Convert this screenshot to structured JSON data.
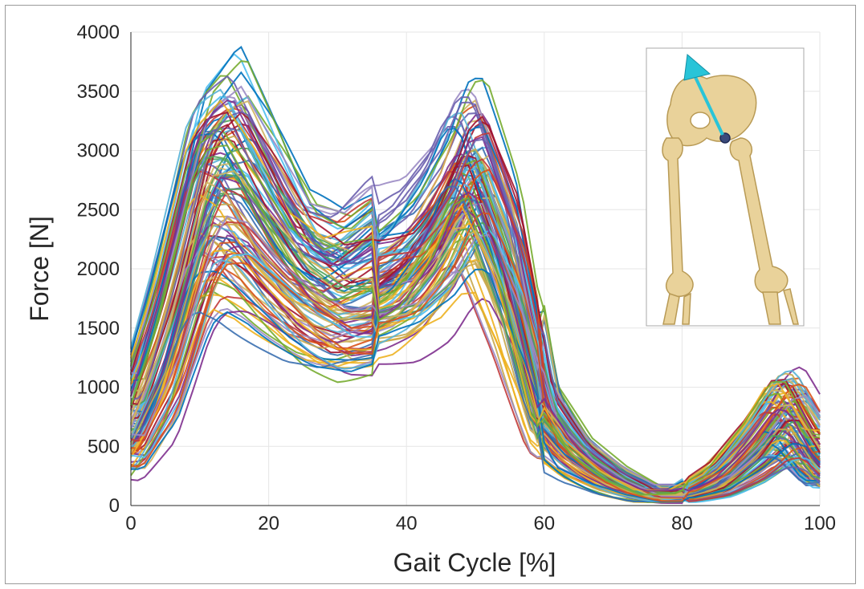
{
  "chart_data": {
    "type": "line",
    "title": "",
    "xlabel": "Gait Cycle [%]",
    "ylabel": "Force [N]",
    "xlim": [
      0,
      100
    ],
    "ylim": [
      0,
      4000
    ],
    "xticks": [
      0,
      20,
      40,
      60,
      80,
      100
    ],
    "yticks": [
      0,
      500,
      1000,
      1500,
      2000,
      2500,
      3000,
      3500,
      4000
    ],
    "grid": true,
    "legend": "none",
    "series_colors": [
      "#0072BD",
      "#D95319",
      "#EDB120",
      "#7E2F8E",
      "#77AC30",
      "#4DBEEE",
      "#A2142F",
      "#3A6FB0",
      "#C9A94E",
      "#6A5FAE",
      "#4FA35B",
      "#57B3D6",
      "#C23B3B",
      "#9B8BC4",
      "#D0B461"
    ],
    "envelope": {
      "x": [
        0,
        5,
        10,
        12,
        15,
        20,
        25,
        30,
        35,
        40,
        45,
        48,
        50,
        55,
        60,
        65,
        70,
        75,
        80,
        85,
        90,
        94,
        96,
        100
      ],
      "mean": [
        600,
        1350,
        2450,
        2700,
        2650,
        2200,
        1850,
        1650,
        1700,
        1850,
        2250,
        2650,
        2700,
        1950,
        750,
        400,
        200,
        80,
        80,
        170,
        420,
        720,
        700,
        300
      ],
      "lower": [
        200,
        550,
        1400,
        1550,
        1500,
        1300,
        1100,
        1000,
        1050,
        1100,
        1250,
        1450,
        1500,
        900,
        300,
        150,
        60,
        20,
        20,
        60,
        150,
        250,
        250,
        100
      ],
      "upper": [
        1150,
        2250,
        3500,
        3650,
        3900,
        3350,
        2700,
        2550,
        2800,
        2950,
        3400,
        3900,
        3950,
        3100,
        1100,
        600,
        350,
        180,
        180,
        400,
        800,
        1200,
        1250,
        850
      ]
    },
    "curve_count": 110
  },
  "inset": {
    "description_name": "pelvis-femur-model",
    "arrow_color": "#29C4D8",
    "bone_color": "#E9D29A"
  }
}
